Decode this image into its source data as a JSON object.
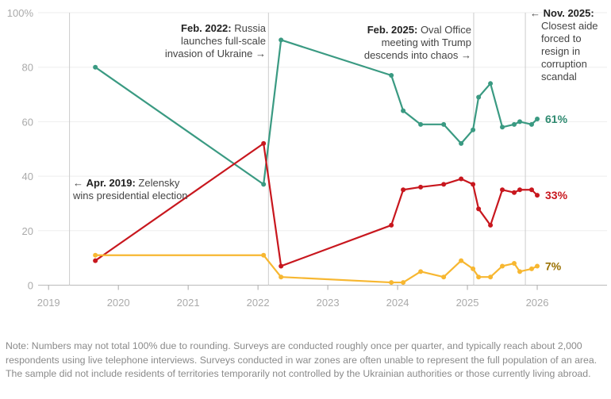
{
  "chart_data": {
    "type": "line",
    "x": [
      2019.67,
      2022.08,
      2022.33,
      2023.91,
      2024.08,
      2024.33,
      2024.66,
      2024.91,
      2025.08,
      2025.16,
      2025.33,
      2025.5,
      2025.67,
      2025.75,
      2025.92,
      2026.0
    ],
    "series": [
      {
        "key": "green",
        "color": "#3a9a82",
        "label_color": "#2e8a70",
        "end_label": "61%",
        "values": [
          80,
          37,
          90,
          77,
          64,
          59,
          59,
          52,
          57,
          69,
          74,
          58,
          59,
          60,
          59,
          61
        ]
      },
      {
        "key": "red",
        "color": "#c8171e",
        "label_color": "#c8171e",
        "end_label": "33%",
        "values": [
          9,
          52,
          7,
          22,
          35,
          36,
          37,
          39,
          37,
          28,
          22,
          35,
          34,
          35,
          35,
          33
        ]
      },
      {
        "key": "yellow",
        "color": "#f7b731",
        "label_color": "#9a7000",
        "end_label": "7%",
        "values": [
          11,
          11,
          3,
          1,
          1,
          5,
          3,
          9,
          6,
          3,
          3,
          7,
          8,
          5,
          6,
          7
        ]
      }
    ],
    "xlim": [
      2018.85,
      2027.0
    ],
    "ylim": [
      0,
      100
    ],
    "xticks": [
      2019,
      2020,
      2021,
      2022,
      2023,
      2024,
      2025,
      2026
    ],
    "xtick_labels": [
      "2019",
      "2020",
      "2021",
      "2022",
      "2023",
      "2024",
      "2025",
      "2026"
    ],
    "yticks": [
      0,
      20,
      40,
      60,
      80,
      100
    ],
    "ytick_labels": [
      "0",
      "20",
      "40",
      "60",
      "80",
      "100%"
    ],
    "grid": true,
    "event_lines": [
      2019.3,
      2022.15,
      2025.09,
      2025.83
    ],
    "annotations": [
      {
        "bold": "Apr. 2019:",
        "text": "Zelensky wins presidential election",
        "arrow": "←"
      },
      {
        "bold": "Feb. 2022:",
        "text": "Russia launches full-scale invasion of Ukraine",
        "arrow": "→"
      },
      {
        "bold": "Feb. 2025:",
        "text": "Oval Office meeting with Trump descends into chaos",
        "arrow": "→"
      },
      {
        "bold": "Nov. 2025:",
        "text": "Closest aide forced to resign in corruption scandal",
        "arrow": "←"
      }
    ]
  },
  "note": "Note: Numbers may not total 100% due to rounding. Surveys are conducted roughly once per quarter, and typically reach about 2,000 respondents using live telephone interviews. Surveys conducted in war zones are often unable to represent the full population of an area. The sample did not include residents of territories temporarily not controlled by the Ukrainian authorities or those currently living abroad."
}
